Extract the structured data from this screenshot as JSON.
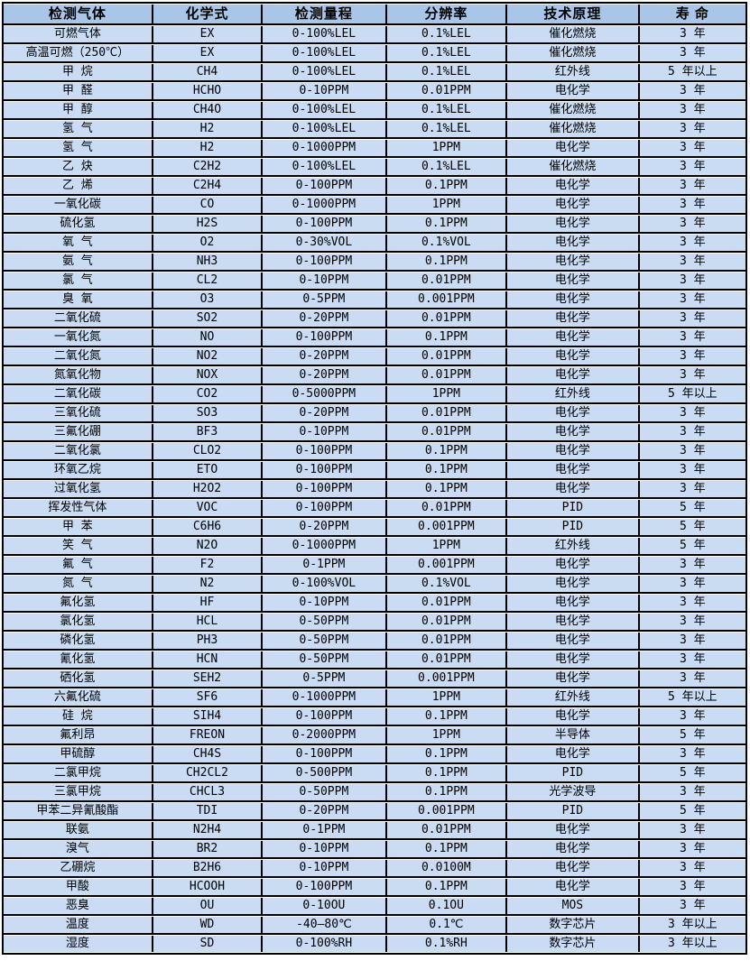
{
  "colors": {
    "header_bg": "#a9c6e8",
    "row_bg": "#c9dcf4",
    "border": "#000000",
    "page_bg": "#ffffff"
  },
  "table": {
    "headers": [
      "检测气体",
      "化学式",
      "检测量程",
      "分辨率",
      "技术原理",
      "寿 命"
    ],
    "rows": [
      [
        "可燃气体",
        "EX",
        "0-100%LEL",
        "0.1%LEL",
        "催化燃烧",
        "3 年"
      ],
      [
        "高温可燃（250℃）",
        "EX",
        "0-100%LEL",
        "0.1%LEL",
        "催化燃烧",
        "3 年"
      ],
      [
        "甲 烷",
        "CH4",
        "0-100%LEL",
        "0.1%LEL",
        "红外线",
        "5 年以上"
      ],
      [
        "甲 醛",
        "HCHO",
        "0-10PPM",
        "0.01PPM",
        "电化学",
        "3 年"
      ],
      [
        "甲 醇",
        "CH4O",
        "0-100%LEL",
        "0.1%LEL",
        "催化燃烧",
        "3 年"
      ],
      [
        "氢 气",
        "H2",
        "0-100%LEL",
        "0.1%LEL",
        "催化燃烧",
        "3 年"
      ],
      [
        "氢 气",
        "H2",
        "0-1000PPM",
        "1PPM",
        "电化学",
        "3 年"
      ],
      [
        "乙 炔",
        "C2H2",
        "0-100%LEL",
        "0.1%LEL",
        "催化燃烧",
        "3 年"
      ],
      [
        "乙 烯",
        "C2H4",
        "0-100PPM",
        "0.1PPM",
        "电化学",
        "3 年"
      ],
      [
        "一氧化碳",
        "CO",
        "0-1000PPM",
        "1PPM",
        "电化学",
        "3 年"
      ],
      [
        "硫化氢",
        "H2S",
        "0-100PPM",
        "0.1PPM",
        "电化学",
        "3 年"
      ],
      [
        "氧 气",
        "O2",
        "0-30%VOL",
        "0.1%VOL",
        "电化学",
        "3 年"
      ],
      [
        "氨 气",
        "NH3",
        "0-100PPM",
        "0.1PPM",
        "电化学",
        "3 年"
      ],
      [
        "氯 气",
        "CL2",
        "0-10PPM",
        "0.01PPM",
        "电化学",
        "3 年"
      ],
      [
        "臭 氧",
        "O3",
        "0-5PPM",
        "0.001PPM",
        "电化学",
        "3 年"
      ],
      [
        "二氧化硫",
        "SO2",
        "0-20PPM",
        "0.01PPM",
        "电化学",
        "3 年"
      ],
      [
        "一氧化氮",
        "NO",
        "0-100PPM",
        "0.1PPM",
        "电化学",
        "3 年"
      ],
      [
        "二氧化氮",
        "NO2",
        "0-20PPM",
        "0.01PPM",
        "电化学",
        "3 年"
      ],
      [
        "氮氧化物",
        "NOX",
        "0-20PPM",
        "0.01PPM",
        "电化学",
        "3 年"
      ],
      [
        "二氧化碳",
        "CO2",
        "0-5000PPM",
        "1PPM",
        "红外线",
        "5 年以上"
      ],
      [
        "三氧化硫",
        "SO3",
        "0-20PPM",
        "0.01PPM",
        "电化学",
        "3 年"
      ],
      [
        "三氟化硼",
        "BF3",
        "0-10PPM",
        "0.01PPM",
        "电化学",
        "3 年"
      ],
      [
        "二氧化氯",
        "CLO2",
        "0-100PPM",
        "0.1PPM",
        "电化学",
        "3 年"
      ],
      [
        "环氧乙烷",
        "ETO",
        "0-100PPM",
        "0.1PPM",
        "电化学",
        "3 年"
      ],
      [
        "过氧化氢",
        "H2O2",
        "0-100PPM",
        "0.1PPM",
        "电化学",
        "3 年"
      ],
      [
        "挥发性气体",
        "VOC",
        "0-100PPM",
        "0.01PPM",
        "PID",
        "5 年"
      ],
      [
        "甲 苯",
        "C6H6",
        "0-20PPM",
        "0.001PPM",
        "PID",
        "5 年"
      ],
      [
        "笑 气",
        "N2O",
        "0-1000PPM",
        "1PPM",
        "红外线",
        "5 年"
      ],
      [
        "氟 气",
        "F2",
        "0-1PPM",
        "0.001PPM",
        "电化学",
        "3 年"
      ],
      [
        "氮 气",
        "N2",
        "0-100%VOL",
        "0.1%VOL",
        "电化学",
        "3 年"
      ],
      [
        "氟化氢",
        "HF",
        "0-10PPM",
        "0.01PPM",
        "电化学",
        "3 年"
      ],
      [
        "氯化氢",
        "HCL",
        "0-50PPM",
        "0.01PPM",
        "电化学",
        "3 年"
      ],
      [
        "磷化氢",
        "PH3",
        "0-50PPM",
        "0.01PPM",
        "电化学",
        "3 年"
      ],
      [
        "氰化氢",
        "HCN",
        "0-50PPM",
        "0.01PPM",
        "电化学",
        "3 年"
      ],
      [
        "硒化氢",
        "SEH2",
        "0-5PPM",
        "0.001PPM",
        "电化学",
        "3 年"
      ],
      [
        "六氟化硫",
        "SF6",
        "0-1000PPM",
        "1PPM",
        "红外线",
        "5 年以上"
      ],
      [
        "硅 烷",
        "SIH4",
        "0-100PPM",
        "0.1PPM",
        "电化学",
        "3 年"
      ],
      [
        "氟利昂",
        "FREON",
        "0-2000PPM",
        "1PPM",
        "半导体",
        "5 年"
      ],
      [
        "甲硫醇",
        "CH4S",
        "0-100PPM",
        "0.1PPM",
        "电化学",
        "3 年"
      ],
      [
        "二氯甲烷",
        "CH2CL2",
        "0-500PPM",
        "0.1PPM",
        "PID",
        "5 年"
      ],
      [
        "三氯甲烷",
        "CHCL3",
        "0-50PPM",
        "0.1PPM",
        "光学波导",
        "3 年"
      ],
      [
        "甲苯二异氰酸酯",
        "TDI",
        "0-20PPM",
        "0.001PPM",
        "PID",
        "5 年"
      ],
      [
        "联氨",
        "N2H4",
        "0-1PPM",
        "0.01PPM",
        "电化学",
        "3 年"
      ],
      [
        "溴气",
        "BR2",
        "0-10PPM",
        "0.1PPM",
        "电化学",
        "3 年"
      ],
      [
        "乙硼烷",
        "B2H6",
        "0-10PPM",
        "0.0100M",
        "电化学",
        "3 年"
      ],
      [
        "甲酸",
        "HCOOH",
        "0-100PPM",
        "0.1PPM",
        "电化学",
        "3 年"
      ],
      [
        "恶臭",
        "OU",
        "0-10OU",
        "0.1OU",
        "MOS",
        "3 年"
      ],
      [
        "温度",
        "WD",
        "-40—80℃",
        "0.1℃",
        "数字芯片",
        "3 年以上"
      ],
      [
        "湿度",
        "SD",
        "0-100%RH",
        "0.1%RH",
        "数字芯片",
        "3 年以上"
      ]
    ]
  }
}
